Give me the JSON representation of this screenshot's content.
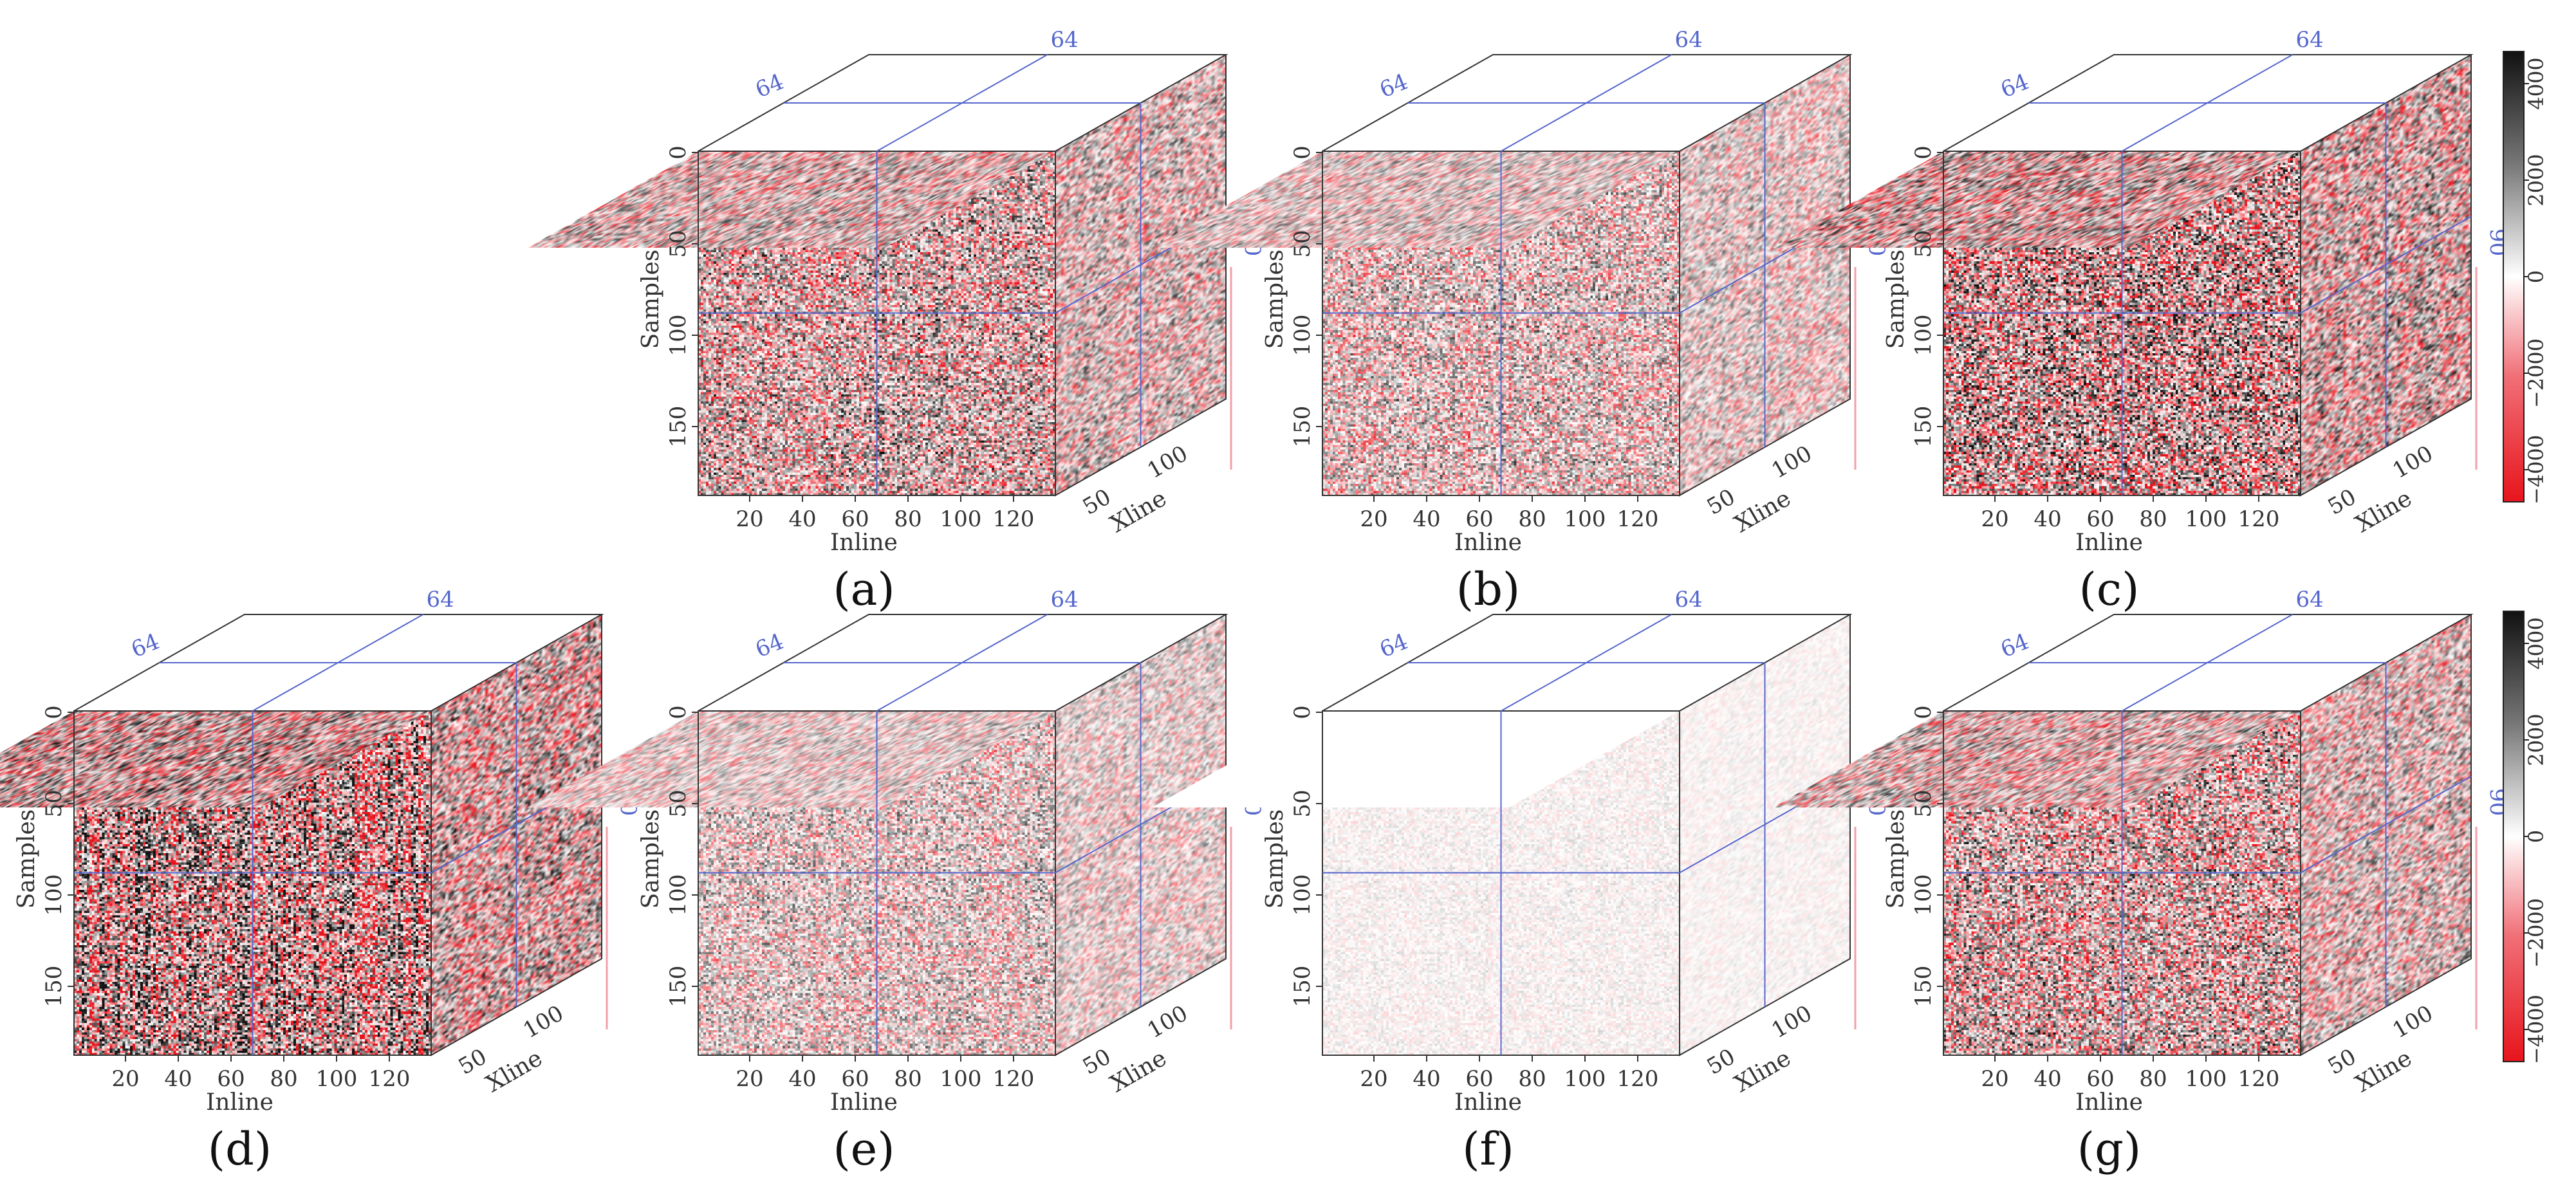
{
  "figure": {
    "panels": [
      {
        "label": "(a)",
        "amplitude": 0.78,
        "faded": false
      },
      {
        "label": "(b)",
        "amplitude": 0.62,
        "faded": false
      },
      {
        "label": "(c)",
        "amplitude": 0.95,
        "faded": false
      },
      {
        "label": "(d)",
        "amplitude": 1.0,
        "faded": false
      },
      {
        "label": "(e)",
        "amplitude": 0.55,
        "faded": false
      },
      {
        "label": "(f)",
        "amplitude": 0.3,
        "faded": true
      },
      {
        "label": "(g)",
        "amplitude": 0.8,
        "faded": false
      }
    ],
    "axes": {
      "inline_label": "Inline",
      "xline_label": "Xline",
      "samples_label": "Samples",
      "inline_ticks": [
        "20",
        "40",
        "60",
        "80",
        "100",
        "120"
      ],
      "sample_ticks": [
        "0",
        "50",
        "100",
        "150"
      ],
      "xline_ticks": [
        "50",
        "100"
      ]
    },
    "slices": {
      "inline": "64",
      "crossline": "64",
      "time": "90"
    },
    "colorbar": {
      "ticks": [
        "4000",
        "2000",
        "0",
        "−2000",
        "−4000"
      ],
      "colors": {
        "positive": "#000000",
        "zero": "#ffffff",
        "negative": "#e8141c"
      }
    },
    "colors": {
      "slice_line": "#5566cc",
      "frame": "#333333",
      "pink_axis": "#f0a0a8"
    }
  }
}
